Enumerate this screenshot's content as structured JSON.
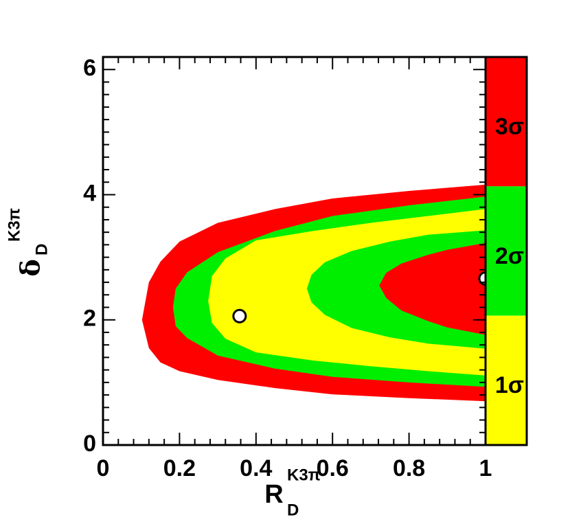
{
  "chart_data": {
    "type": "contour",
    "xlabel": {
      "base": "R",
      "sub": "D",
      "sup": "K3π"
    },
    "ylabel": {
      "base": "δ",
      "sub": "D",
      "sup": "K3π"
    },
    "xlim": [
      0,
      1
    ],
    "ylim": [
      0,
      6.2
    ],
    "xticks": [
      0,
      0.2,
      0.4,
      0.6,
      0.8,
      1
    ],
    "yticks": [
      0,
      2,
      4,
      6
    ],
    "regions": [
      {
        "color": "#ff0000",
        "x": [
          1,
          0.8,
          0.6,
          0.45,
          0.3,
          0.2,
          0.15,
          0.12,
          0.102,
          0.12,
          0.15,
          0.2,
          0.3,
          0.45,
          0.6,
          0.8,
          1
        ],
        "y": [
          4.16,
          4.06,
          3.94,
          3.77,
          3.55,
          3.25,
          2.93,
          2.6,
          2.0,
          1.55,
          1.32,
          1.18,
          1.04,
          0.91,
          0.81,
          0.75,
          0.7
        ]
      },
      {
        "color": "#00ee00",
        "x": [
          1,
          0.8,
          0.6,
          0.45,
          0.3,
          0.22,
          0.19,
          0.183,
          0.19,
          0.22,
          0.3,
          0.45,
          0.6,
          0.8,
          1
        ],
        "y": [
          3.97,
          3.83,
          3.66,
          3.42,
          3.08,
          2.76,
          2.5,
          2.2,
          1.9,
          1.71,
          1.43,
          1.22,
          1.09,
          1.0,
          0.93
        ]
      },
      {
        "color": "#ffff00",
        "x": [
          1,
          0.85,
          0.7,
          0.55,
          0.4,
          0.32,
          0.285,
          0.275,
          0.285,
          0.32,
          0.4,
          0.55,
          0.7,
          0.85,
          1
        ],
        "y": [
          3.77,
          3.66,
          3.55,
          3.42,
          3.27,
          2.98,
          2.7,
          2.3,
          1.95,
          1.7,
          1.48,
          1.35,
          1.26,
          1.18,
          1.11
        ]
      },
      {
        "color": "#00ee00",
        "x": [
          1,
          0.85,
          0.75,
          0.65,
          0.58,
          0.545,
          0.533,
          0.545,
          0.58,
          0.65,
          0.75,
          0.85,
          1
        ],
        "y": [
          3.43,
          3.36,
          3.25,
          3.1,
          2.92,
          2.72,
          2.5,
          2.28,
          2.08,
          1.87,
          1.72,
          1.62,
          1.54
        ]
      },
      {
        "color": "#ff0000",
        "x": [
          1,
          0.9,
          0.85,
          0.78,
          0.74,
          0.722,
          0.74,
          0.78,
          0.85,
          0.9,
          1
        ],
        "y": [
          3.23,
          3.12,
          3.04,
          2.9,
          2.75,
          2.55,
          2.35,
          2.15,
          1.98,
          1.88,
          1.76
        ]
      }
    ],
    "points": {
      "x": [
        0.357,
        1
      ],
      "y": [
        2.06,
        2.66
      ]
    },
    "colorbar": [
      {
        "label": "3σ",
        "color": "#ff0000"
      },
      {
        "label": "2σ",
        "color": "#00ee00"
      },
      {
        "label": "1σ",
        "color": "#ffff00"
      }
    ]
  }
}
